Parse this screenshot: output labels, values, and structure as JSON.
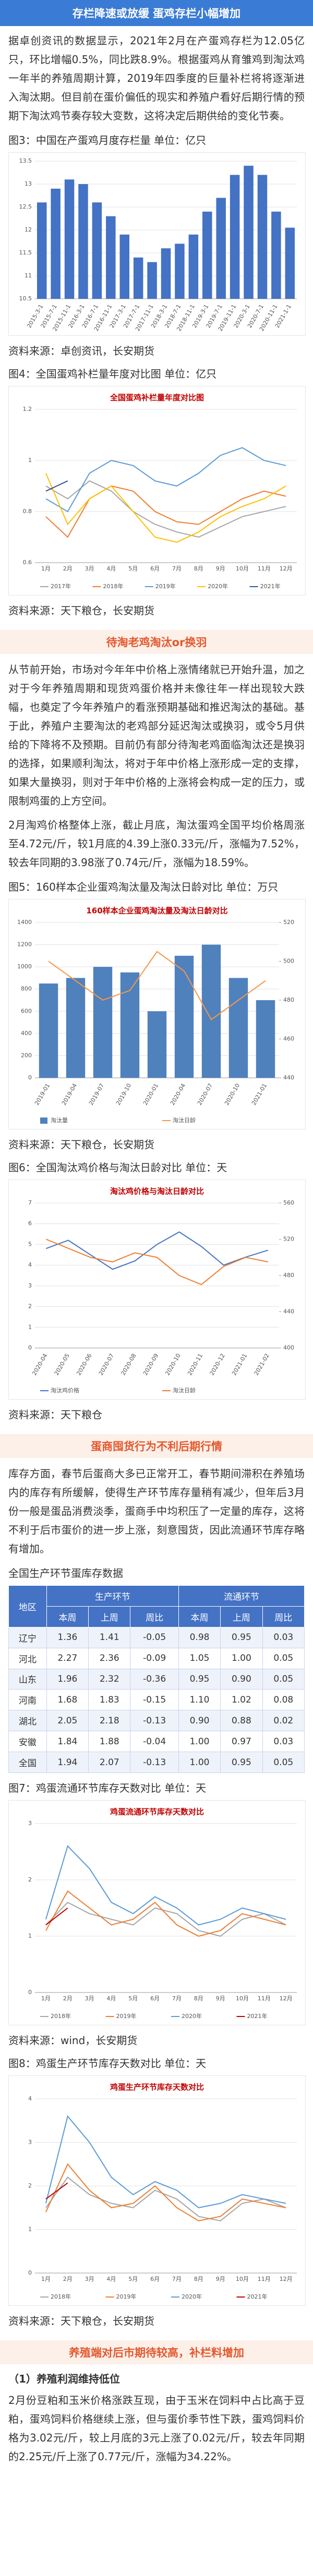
{
  "header": {
    "title": "存栏降速或放缓  蛋鸡存栏小幅增加"
  },
  "sections": [
    {
      "paragraph": "据卓创资讯的数据显示，2021年2月在产蛋鸡存栏为12.05亿只，环比增幅0.5%，同比跌8.9%。根据蛋鸡从育雏鸡到淘汰鸡一年半的养殖周期计算，2019年四季度的巨量补栏将将逐渐进入淘汰期。但目前在蛋价偏低的现实和养殖户看好后期行情的预期下淘汰鸡节奏存较大变数，这将决定后期供给的变化节奏。"
    },
    {
      "caption": "图3：中国在产蛋鸡月度存栏量 单位：亿只",
      "source": "资料来源：卓创资讯，长安期货"
    },
    {
      "caption": "图4：全国蛋鸡补栏量年度对比图 单位：亿只",
      "source": "资料来源：天下粮仓，长安期货"
    },
    {
      "heading": "待淘老鸡淘汰or换羽",
      "paragraphs": [
        "从节前开始，市场对今年年中价格上涨情绪就已开始升温，加之对于今年养殖周期和现货鸡蛋价格并未像往年一样出现较大跌幅，也奠定了今年养殖户的看涨预期基础和推迟淘汰的基础。基于此，养殖户主要淘汰的老鸡部分延迟淘汰或换羽，或令5月供给的下降将不及预期。目前仍有部分待淘老鸡面临淘汰还是换羽的选择，如果顺利淘汰，将对于年中价格上涨形成一定的支撑，如果大量换羽，则对于年中价格的上涨将会构成一定的压力，或限制鸡蛋的上方空间。",
        "2月淘鸡价格整体上涨，截止月底，淘汰蛋鸡全国平均价格周涨至4.72元/斤，较1月底的4.39上涨0.33元/斤，涨幅为7.52%，较去年同期的3.98涨了0.74元/斤，涨幅为18.59%。"
      ]
    },
    {
      "caption": "图5：160样本企业蛋鸡淘汰量及淘汰日龄对比 单位：万只",
      "source": "资料来源：天下粮仓，长安期货"
    },
    {
      "caption": "图6：全国淘汰鸡价格与淘汰日龄对比 单位：天",
      "source": "资料来源：天下粮仓"
    },
    {
      "heading": "蛋商囤货行为不利后期行情",
      "paragraph": "库存方面，春节后蛋商大多已正常开工，春节期间滞积在养殖场内的库存有所缓解，使得生产环节库存量稍有减少，但年后3月份一般是蛋品消费淡季，蛋商手中均积压了一定量的库存，这将不利于后市蛋价的进一步上涨，刻意囤货，因此流通环节库存略有增加。"
    },
    {
      "caption": "全国生产环节蛋库存数据"
    },
    {
      "caption": "图7：鸡蛋流通环节库存天数对比 单位：天",
      "source": "资料来源：wind，长安期货"
    },
    {
      "caption": "图8：鸡蛋生产环节库存天数对比 单位：天",
      "source": "资料来源：天下粮仓，长安期货"
    },
    {
      "heading": "养殖端对后市期待较高，补栏料增加",
      "subheading": "（1）养殖利润维持低位",
      "paragraph": "2月份豆粕和玉米价格涨跌互现，由于玉米在饲料中占比高于豆粕，蛋鸡饲料价格继续上涨，但与蛋价季节性下跌，蛋鸡饲料价格为3.02元/斤，较上月底的3元上涨了0.02元/斤，较去年同期的2.25元/斤上涨了0.77元/斤，涨幅为34.22%。"
    }
  ],
  "table": {
    "groups": [
      "地区",
      "生产环节",
      "流通环节"
    ],
    "columns": [
      "本周",
      "上周",
      "周比",
      "本周",
      "上周",
      "周比"
    ],
    "rows": [
      [
        "辽宁",
        "1.36",
        "1.41",
        "-0.05",
        "0.98",
        "0.95",
        "0.03"
      ],
      [
        "河北",
        "2.27",
        "2.36",
        "-0.09",
        "1.05",
        "1.00",
        "0.05"
      ],
      [
        "山东",
        "1.96",
        "2.32",
        "-0.36",
        "0.95",
        "0.90",
        "0.05"
      ],
      [
        "河南",
        "1.68",
        "1.83",
        "-0.15",
        "1.10",
        "1.02",
        "0.08"
      ],
      [
        "湖北",
        "2.05",
        "2.18",
        "-0.13",
        "0.90",
        "0.88",
        "0.02"
      ],
      [
        "安徽",
        "1.84",
        "1.88",
        "-0.04",
        "1.00",
        "0.97",
        "0.03"
      ],
      [
        "全国",
        "1.94",
        "2.07",
        "-0.13",
        "1.00",
        "0.95",
        "0.05"
      ]
    ]
  },
  "chart_data": [
    {
      "type": "bar",
      "categories": [
        "2015-3-1",
        "2015-7-1",
        "2015-11-1",
        "2016-3-1",
        "2016-7-1",
        "2016-11-1",
        "2017-3-1",
        "2017-7-1",
        "2017-11-1",
        "2018-3-1",
        "2018-7-1",
        "2018-11-1",
        "2019-3-1",
        "2019-7-1",
        "2019-11-1",
        "2020-3-1",
        "2020-7-1",
        "2020-11-1",
        "2021-1-1"
      ],
      "series": [
        {
          "name": "在产蛋鸡存栏",
          "color": "#4472c4",
          "values": [
            12.6,
            12.9,
            13.1,
            13.0,
            12.6,
            12.3,
            11.9,
            11.4,
            11.3,
            11.6,
            11.7,
            11.9,
            12.4,
            12.7,
            13.2,
            13.4,
            13.2,
            12.4,
            12.05
          ]
        }
      ],
      "ylim": [
        10.5,
        13.5
      ],
      "yticks": [
        10.5,
        11,
        11.5,
        12,
        12.5,
        13,
        13.5
      ],
      "grid": true,
      "legend": false
    },
    {
      "type": "line",
      "title": "全国蛋鸡补栏量年度对比图",
      "categories": [
        "1月",
        "2月",
        "3月",
        "4月",
        "5月",
        "6月",
        "7月",
        "8月",
        "9月",
        "10月",
        "11月",
        "12月"
      ],
      "series": [
        {
          "name": "2017年",
          "color": "#a5a5a5",
          "values": [
            0.9,
            0.85,
            0.92,
            0.88,
            0.8,
            0.75,
            0.72,
            0.7,
            0.74,
            0.78,
            0.8,
            0.82
          ]
        },
        {
          "name": "2018年",
          "color": "#ed7d31",
          "values": [
            0.78,
            0.7,
            0.85,
            0.9,
            0.88,
            0.8,
            0.76,
            0.75,
            0.8,
            0.85,
            0.88,
            0.86
          ]
        },
        {
          "name": "2019年",
          "color": "#5b9bd5",
          "values": [
            0.85,
            0.8,
            0.95,
            1.0,
            0.98,
            0.92,
            0.9,
            0.95,
            1.02,
            1.05,
            1.0,
            0.98
          ]
        },
        {
          "name": "2020年",
          "color": "#ffc000",
          "values": [
            0.95,
            0.75,
            0.85,
            0.9,
            0.8,
            0.7,
            0.68,
            0.72,
            0.78,
            0.82,
            0.85,
            0.9
          ]
        },
        {
          "name": "2021年",
          "color": "#2f5597",
          "values": [
            0.88,
            0.92,
            null,
            null,
            null,
            null,
            null,
            null,
            null,
            null,
            null,
            null
          ]
        }
      ],
      "ylim": [
        0.6,
        1.2
      ],
      "yticks": [
        0.6,
        0.8,
        1,
        1.2
      ],
      "grid": true,
      "legend": true
    },
    {
      "type": "combo",
      "title": "160样本企业蛋鸡淘汰量及淘汰日龄对比",
      "categories": [
        "2019-01",
        "2019-04",
        "2019-07",
        "2019-10",
        "2020-01",
        "2020-04",
        "2020-07",
        "2020-10",
        "2021-01"
      ],
      "series": [
        {
          "name": "淘汰量",
          "type": "bar",
          "color": "#4f81bd",
          "values": [
            850,
            900,
            1000,
            950,
            600,
            1100,
            1200,
            900,
            700
          ]
        },
        {
          "name": "淘汰日龄",
          "type": "line",
          "axis": "y2",
          "color": "#f79646",
          "values": [
            500,
            490,
            480,
            485,
            505,
            495,
            470,
            480,
            490
          ]
        }
      ],
      "ylim": [
        0,
        1400
      ],
      "yticks": [
        0,
        200,
        400,
        600,
        800,
        1000,
        1200,
        1400
      ],
      "y2lim": [
        440,
        520
      ],
      "y2ticks": [
        440,
        460,
        480,
        500,
        520
      ],
      "grid": true,
      "legend": true
    },
    {
      "type": "line",
      "title": "淘汰鸡价格与淘汰日龄对比",
      "categories": [
        "2020-04",
        "2020-05",
        "2020-06",
        "2020-07",
        "2020-08",
        "2020-09",
        "2020-10",
        "2020-11",
        "2020-12",
        "2021-01",
        "2021-02"
      ],
      "series": [
        {
          "name": "淘汰鸡价格",
          "color": "#4472c4",
          "values": [
            4.8,
            5.2,
            4.5,
            3.8,
            4.2,
            5.0,
            5.6,
            4.9,
            4.0,
            4.39,
            4.72
          ]
        },
        {
          "name": "淘汰日龄",
          "axis": "y2",
          "color": "#ed7d31",
          "values": [
            520,
            510,
            500,
            495,
            505,
            500,
            480,
            470,
            490,
            500,
            495
          ]
        }
      ],
      "ylim": [
        0,
        7
      ],
      "yticks": [
        0,
        1,
        2,
        3,
        4,
        5,
        6,
        7
      ],
      "y2lim": [
        400,
        560
      ],
      "y2ticks": [
        400,
        440,
        480,
        520,
        560
      ],
      "grid": true,
      "legend": true
    },
    {
      "type": "line",
      "title": "鸡蛋流通环节库存天数对比",
      "categories": [
        "1月",
        "2月",
        "3月",
        "4月",
        "5月",
        "6月",
        "7月",
        "8月",
        "9月",
        "10月",
        "11月",
        "12月"
      ],
      "series": [
        {
          "name": "2018年",
          "color": "#a5a5a5",
          "values": [
            1.2,
            1.6,
            1.4,
            1.3,
            1.2,
            1.5,
            1.4,
            1.1,
            1.0,
            1.3,
            1.4,
            1.2
          ]
        },
        {
          "name": "2019年",
          "color": "#ed7d31",
          "values": [
            1.1,
            1.8,
            1.5,
            1.2,
            1.3,
            1.6,
            1.2,
            1.0,
            1.1,
            1.4,
            1.3,
            1.2
          ]
        },
        {
          "name": "2020年",
          "color": "#5b9bd5",
          "values": [
            1.3,
            2.6,
            2.2,
            1.6,
            1.4,
            1.7,
            1.5,
            1.2,
            1.3,
            1.5,
            1.4,
            1.3
          ]
        },
        {
          "name": "2021年",
          "color": "#c00000",
          "values": [
            1.2,
            1.5,
            null,
            null,
            null,
            null,
            null,
            null,
            null,
            null,
            null,
            null
          ]
        }
      ],
      "ylim": [
        0,
        3
      ],
      "yticks": [
        0,
        1,
        2,
        3
      ],
      "grid": true,
      "legend": true
    },
    {
      "type": "line",
      "title": "鸡蛋生产环节库存天数对比",
      "categories": [
        "1月",
        "2月",
        "3月",
        "4月",
        "5月",
        "6月",
        "7月",
        "8月",
        "9月",
        "10月",
        "11月",
        "12月"
      ],
      "series": [
        {
          "name": "2018年",
          "color": "#a5a5a5",
          "values": [
            1.5,
            2.2,
            1.8,
            1.6,
            1.5,
            1.9,
            1.7,
            1.3,
            1.2,
            1.6,
            1.7,
            1.5
          ]
        },
        {
          "name": "2019年",
          "color": "#ed7d31",
          "values": [
            1.4,
            2.5,
            1.9,
            1.5,
            1.6,
            2.0,
            1.5,
            1.2,
            1.3,
            1.7,
            1.6,
            1.5
          ]
        },
        {
          "name": "2020年",
          "color": "#5b9bd5",
          "values": [
            1.6,
            3.6,
            3.0,
            2.2,
            1.8,
            2.1,
            1.9,
            1.5,
            1.6,
            1.8,
            1.7,
            1.6
          ]
        },
        {
          "name": "2021年",
          "color": "#c00000",
          "values": [
            1.7,
            2.07,
            null,
            null,
            null,
            null,
            null,
            null,
            null,
            null,
            null,
            null
          ]
        }
      ],
      "ylim": [
        0,
        4
      ],
      "yticks": [
        0,
        1,
        2,
        3,
        4
      ],
      "grid": true,
      "legend": true
    }
  ]
}
